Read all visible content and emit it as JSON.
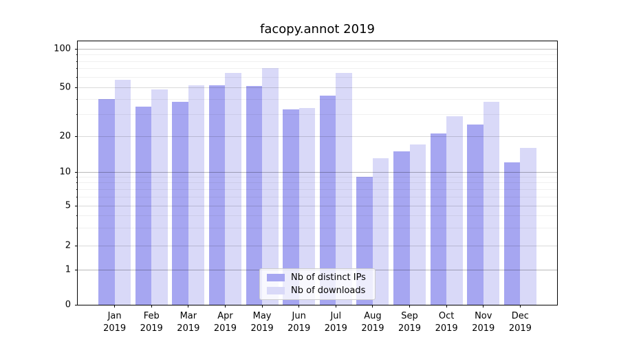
{
  "chart_data": {
    "type": "bar",
    "title": "facopy.annot 2019",
    "categories": [
      "Jan",
      "Feb",
      "Mar",
      "Apr",
      "May",
      "Jun",
      "Jul",
      "Aug",
      "Sep",
      "Oct",
      "Nov",
      "Dec"
    ],
    "category_year": "2019",
    "series": [
      {
        "name": "Nb of distinct IPs",
        "color": "#a6a6f1",
        "values": [
          40,
          35,
          38,
          52,
          51,
          33,
          43,
          9,
          15,
          21,
          25,
          12
        ]
      },
      {
        "name": "Nb of downloads",
        "color": "#d9d9f8",
        "values": [
          57,
          48,
          52,
          65,
          71,
          34,
          65,
          13,
          17,
          29,
          38,
          16
        ]
      }
    ],
    "yscale": "symlog",
    "yticks": [
      0,
      1,
      2,
      5,
      10,
      20,
      50,
      100
    ],
    "minor_yticks": [
      3,
      4,
      6,
      7,
      8,
      9,
      30,
      40,
      60,
      70,
      80,
      90
    ],
    "decade_yticks": [
      1,
      10,
      100
    ],
    "ylim": [
      0,
      115
    ],
    "grid": true,
    "grid_above_bars": true,
    "legend_position": "lower center"
  }
}
